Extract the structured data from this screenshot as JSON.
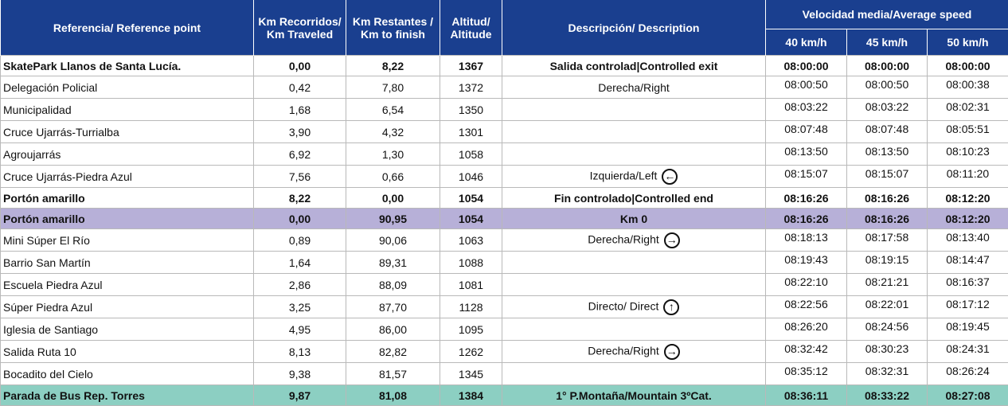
{
  "headers": {
    "reference": "Referencia/ Reference point",
    "km_traveled": "Km Recorridos/ Km Traveled",
    "km_to_finish": "Km Restantes / Km to finish",
    "altitude": "Altitud/ Altitude",
    "description": "Descripción/ Description",
    "average_speed": "Velocidad media/Average speed",
    "speed_40": "40 km/h",
    "speed_45": "45 km/h",
    "speed_50": "50 km/h"
  },
  "icons": {
    "left": "←",
    "right": "→",
    "up": "↑"
  },
  "rows": [
    {
      "ref": "SkatePark Llanos de Santa Lucía.",
      "km": "0,00",
      "remaining": "8,22",
      "alt": "1367",
      "desc": "Salida controlad|Controlled exit",
      "arrow": "",
      "t40": "08:00:00",
      "t45": "08:00:00",
      "t50": "08:00:00",
      "style": "bold"
    },
    {
      "ref": "Delegación Policial",
      "km": "0,42",
      "remaining": "7,80",
      "alt": "1372",
      "desc": "Derecha/Right",
      "arrow": "",
      "t40": "08:00:50",
      "t45": "08:00:50",
      "t50": "08:00:38",
      "style": ""
    },
    {
      "ref": "Municipalidad",
      "km": "1,68",
      "remaining": "6,54",
      "alt": "1350",
      "desc": "",
      "arrow": "",
      "t40": "08:03:22",
      "t45": "08:03:22",
      "t50": "08:02:31",
      "style": ""
    },
    {
      "ref": "Cruce Ujarrás-Turrialba",
      "km": "3,90",
      "remaining": "4,32",
      "alt": "1301",
      "desc": "",
      "arrow": "",
      "t40": "08:07:48",
      "t45": "08:07:48",
      "t50": "08:05:51",
      "style": ""
    },
    {
      "ref": "Agroujarrás",
      "km": "6,92",
      "remaining": "1,30",
      "alt": "1058",
      "desc": "",
      "arrow": "",
      "t40": "08:13:50",
      "t45": "08:13:50",
      "t50": "08:10:23",
      "style": ""
    },
    {
      "ref": "Cruce Ujarrás-Piedra Azul",
      "km": "7,56",
      "remaining": "0,66",
      "alt": "1046",
      "desc": "Izquierda/Left",
      "arrow": "left",
      "t40": "08:15:07",
      "t45": "08:15:07",
      "t50": "08:11:20",
      "style": ""
    },
    {
      "ref": "Portón amarillo",
      "km": "8,22",
      "remaining": "0,00",
      "alt": "1054",
      "desc": "Fin controlado|Controlled end",
      "arrow": "",
      "t40": "08:16:26",
      "t45": "08:16:26",
      "t50": "08:12:20",
      "style": "bold"
    },
    {
      "ref": "Portón amarillo",
      "km": "0,00",
      "remaining": "90,95",
      "alt": "1054",
      "desc": "Km 0",
      "arrow": "",
      "t40": "08:16:26",
      "t45": "08:16:26",
      "t50": "08:12:20",
      "style": "bold purple"
    },
    {
      "ref": "Mini Súper El Río",
      "km": "0,89",
      "remaining": "90,06",
      "alt": "1063",
      "desc": "Derecha/Right",
      "arrow": "right",
      "t40": "08:18:13",
      "t45": "08:17:58",
      "t50": "08:13:40",
      "style": ""
    },
    {
      "ref": "Barrio San Martín",
      "km": "1,64",
      "remaining": "89,31",
      "alt": "1088",
      "desc": "",
      "arrow": "",
      "t40": "08:19:43",
      "t45": "08:19:15",
      "t50": "08:14:47",
      "style": ""
    },
    {
      "ref": "Escuela Piedra Azul",
      "km": "2,86",
      "remaining": "88,09",
      "alt": "1081",
      "desc": "",
      "arrow": "",
      "t40": "08:22:10",
      "t45": "08:21:21",
      "t50": "08:16:37",
      "style": ""
    },
    {
      "ref": "Súper Piedra Azul",
      "km": "3,25",
      "remaining": "87,70",
      "alt": "1128",
      "desc": "Directo/ Direct",
      "arrow": "up",
      "t40": "08:22:56",
      "t45": "08:22:01",
      "t50": "08:17:12",
      "style": ""
    },
    {
      "ref": "Iglesia de Santiago",
      "km": "4,95",
      "remaining": "86,00",
      "alt": "1095",
      "desc": "",
      "arrow": "",
      "t40": "08:26:20",
      "t45": "08:24:56",
      "t50": "08:19:45",
      "style": ""
    },
    {
      "ref": "Salida Ruta 10",
      "km": "8,13",
      "remaining": "82,82",
      "alt": "1262",
      "desc": "Derecha/Right",
      "arrow": "right",
      "t40": "08:32:42",
      "t45": "08:30:23",
      "t50": "08:24:31",
      "style": ""
    },
    {
      "ref": "Bocadito del Cielo",
      "km": "9,38",
      "remaining": "81,57",
      "alt": "1345",
      "desc": "",
      "arrow": "",
      "t40": "08:35:12",
      "t45": "08:32:31",
      "t50": "08:26:24",
      "style": ""
    },
    {
      "ref": "Parada de Bus Rep. Torres",
      "km": "9,87",
      "remaining": "81,08",
      "alt": "1384",
      "desc": "1° P.Montaña/Mountain 3ºCat.",
      "arrow": "",
      "t40": "08:36:11",
      "t45": "08:33:22",
      "t50": "08:27:08",
      "style": "bold teal"
    }
  ]
}
